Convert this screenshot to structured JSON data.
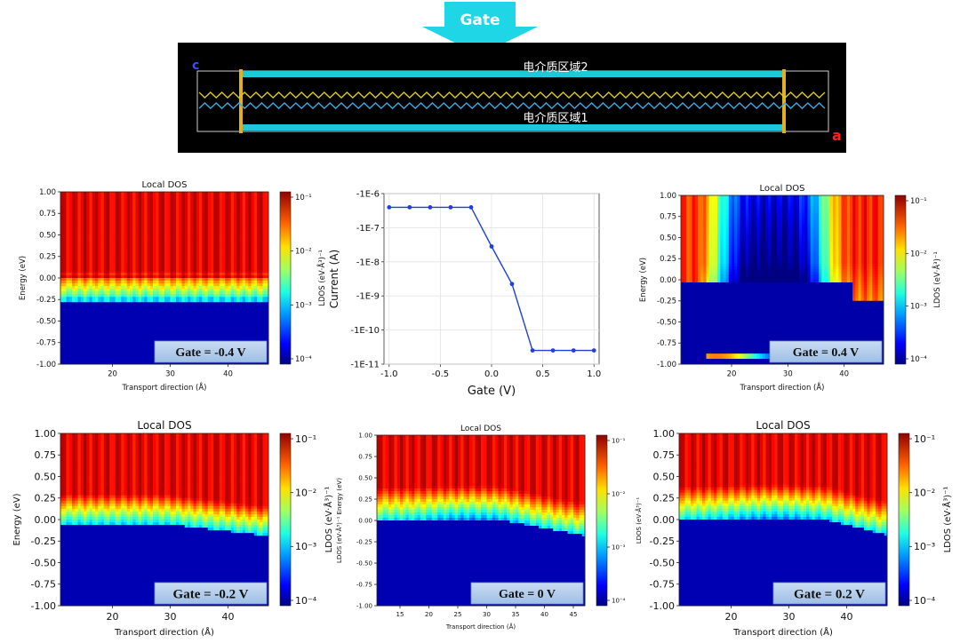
{
  "header": {
    "gate_arrow_label": "Gate",
    "region_top": "电介质区域2",
    "region_bottom": "电介质区域1",
    "axis_c": "c",
    "axis_a": "a",
    "colors": {
      "arrow": "#1fd6e6",
      "dielectric": "#1fc8d8",
      "electrode": "#e0b020",
      "background": "#000000"
    }
  },
  "chart_data": [
    {
      "id": "ldos_m04",
      "type": "heatmap",
      "title": "Local DOS",
      "xlabel": "Transport direction (Å)",
      "ylabel": "Energy (eV)",
      "xlim": [
        11,
        47
      ],
      "ylim": [
        -1.0,
        1.0
      ],
      "xticks": [
        "20",
        "30",
        "40"
      ],
      "yticks": [
        "1.00",
        "0.75",
        "0.50",
        "0.25",
        "0.00",
        "-0.25",
        "-0.50",
        "-0.75",
        "-1.00"
      ],
      "colorbar_label": "LDOS (eV·Å³)⁻¹",
      "colorbar_ticks": [
        "10⁻¹",
        "10⁻²",
        "10⁻³",
        "10⁻⁴"
      ],
      "gate_label": "Gate = -0.4 V",
      "gap_edge_eV": [
        -0.2,
        -0.26
      ],
      "gap_top_eV": [
        0.05,
        -0.05
      ]
    },
    {
      "id": "iv",
      "type": "line",
      "title": "",
      "xlabel": "Gate (V)",
      "ylabel": "Current (A)",
      "xlim": [
        -1.05,
        1.05
      ],
      "yticks": [
        "-1E-6",
        "-1E-7",
        "-1E-8",
        "-1E-9",
        "-1E-10",
        "-1E-11"
      ],
      "xticks": [
        "-1.0",
        "-0.5",
        "0.0",
        "0.5",
        "1.0"
      ],
      "series": [
        {
          "x": [
            -1.0,
            -0.8,
            -0.6,
            -0.4,
            -0.2,
            0.0,
            0.2,
            0.4,
            0.6,
            0.8,
            1.0
          ],
          "y_log10_magnitude": [
            -6.4,
            -6.4,
            -6.4,
            -6.4,
            -6.4,
            -7.55,
            -8.65,
            -10.6,
            -10.6,
            -10.6,
            -10.6
          ]
        }
      ],
      "grid": true,
      "color": "#1f3fe0"
    },
    {
      "id": "ldos_p04",
      "type": "heatmap",
      "title": "Local DOS",
      "xlabel": "Transport direction (Å)",
      "ylabel": "Energy (eV)",
      "xlim": [
        11,
        47
      ],
      "ylim": [
        -1.0,
        1.0
      ],
      "xticks": [
        "20",
        "30",
        "40"
      ],
      "yticks": [
        "1.00",
        "0.75",
        "0.50",
        "0.25",
        "0.00",
        "-0.25",
        "-0.50",
        "-0.75",
        "-1.00"
      ],
      "colorbar_label": "LDOS (eV·Å³)⁻¹",
      "colorbar_ticks": [
        "10⁻¹",
        "10⁻²",
        "10⁻³",
        "10⁻⁴"
      ],
      "gate_label": "Gate = 0.4 V"
    },
    {
      "id": "ldos_m02",
      "type": "heatmap",
      "title": "Local DOS",
      "xlabel": "Transport direction (Å)",
      "ylabel": "Energy (eV)",
      "xlim": [
        11,
        47
      ],
      "ylim": [
        -1.0,
        1.0
      ],
      "xticks": [
        "20",
        "30",
        "40"
      ],
      "yticks": [
        "1.00",
        "0.75",
        "0.50",
        "0.25",
        "0.00",
        "-0.25",
        "-0.50",
        "-0.75",
        "-1.00"
      ],
      "colorbar_label": "LDOS (eV·Å³)⁻¹",
      "colorbar_ticks": [
        "10⁻¹",
        "10⁻²",
        "10⁻³",
        "10⁻⁴"
      ],
      "gate_label": "Gate = -0.2 V"
    },
    {
      "id": "ldos_0",
      "type": "heatmap",
      "title": "Local DOS",
      "xlabel": "Transport direction (Å)",
      "ylabel": "LDOS (eV·Å³)⁻¹ Energy (eV)",
      "xlim": [
        11,
        47
      ],
      "ylim": [
        -1.0,
        1.0
      ],
      "xticks": [
        "15",
        "20",
        "25",
        "30",
        "35",
        "40",
        "45"
      ],
      "yticks": [
        "1.00",
        "0.75",
        "0.50",
        "0.25",
        "0.00",
        "-0.25",
        "-0.50",
        "-0.75",
        "-1.00"
      ],
      "colorbar_label": "LDOS (eV·Å³)⁻¹",
      "colorbar_ticks": [
        "10⁻¹",
        "10⁻²",
        "10⁻³",
        "10⁻⁴"
      ],
      "gate_label": "Gate = 0 V"
    },
    {
      "id": "ldos_p02",
      "type": "heatmap",
      "title": "Local DOS",
      "xlabel": "Transport direction (Å)",
      "ylabel": "",
      "xlim": [
        11,
        47
      ],
      "ylim": [
        -1.0,
        1.0
      ],
      "xticks": [
        "20",
        "30",
        "40"
      ],
      "yticks": [
        "1.00",
        "0.75",
        "0.50",
        "0.25",
        "0.00",
        "-0.25",
        "-0.50",
        "-0.75",
        "-1.00"
      ],
      "colorbar_label": "LDOS (eV·Å³)⁻¹",
      "colorbar_ticks": [
        "10⁻¹",
        "10⁻²",
        "10⁻³",
        "10⁻⁴"
      ],
      "gate_label": "Gate = 0.2 V"
    }
  ]
}
